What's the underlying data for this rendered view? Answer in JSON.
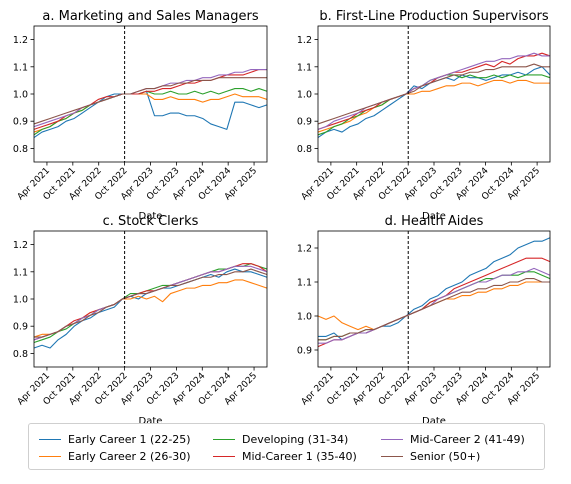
{
  "chart_data": [
    {
      "type": "line",
      "title": "a. Marketing and Sales Managers",
      "xlabel": "Date",
      "ylabel": "",
      "ylim": [
        0.75,
        1.25
      ],
      "yticks": [
        "0.8",
        "0.9",
        "1.0",
        "1.1",
        "1.2"
      ],
      "xticks": [
        "Apr 2021",
        "Oct 2021",
        "Apr 2022",
        "Oct 2022",
        "Apr 2023",
        "Oct 2023",
        "Apr 2024",
        "Oct 2024",
        "Apr 2025"
      ],
      "xticks_visible": [
        "Apr 2021",
        "Oct 2021",
        "Apr 2022",
        "Oct 2022",
        "Apr 2023",
        "Oct 2023",
        "Apr 2024",
        "Oct 2024",
        "Apr 2025"
      ],
      "vline": "Oct 2022",
      "x_start": "Jan 2021",
      "x_end": "Jul 2025",
      "series": [
        {
          "name": "Early Career 1 (22-25)",
          "values": [
            0.84,
            0.86,
            0.87,
            0.88,
            0.9,
            0.91,
            0.93,
            0.95,
            0.97,
            0.99,
            1.0,
            1.0,
            1.0,
            1.0,
            1.01,
            0.92,
            0.92,
            0.93,
            0.93,
            0.92,
            0.92,
            0.91,
            0.89,
            0.88,
            0.87,
            0.97,
            0.97,
            0.96,
            0.95,
            0.96
          ]
        },
        {
          "name": "Early Career 2 (26-30)",
          "values": [
            0.86,
            0.87,
            0.88,
            0.9,
            0.91,
            0.93,
            0.94,
            0.96,
            0.97,
            0.98,
            0.99,
            1.0,
            1.0,
            1.0,
            1.0,
            0.98,
            0.98,
            0.99,
            0.98,
            0.98,
            0.98,
            0.97,
            0.98,
            0.98,
            0.99,
            1.0,
            0.99,
            0.99,
            0.99,
            0.98
          ]
        },
        {
          "name": "Developing (31-34)",
          "values": [
            0.85,
            0.87,
            0.88,
            0.9,
            0.91,
            0.93,
            0.94,
            0.96,
            0.97,
            0.98,
            0.99,
            1.0,
            1.0,
            1.0,
            1.01,
            1.0,
            1.0,
            1.01,
            1.0,
            1.0,
            1.01,
            1.0,
            1.01,
            1.0,
            1.01,
            1.02,
            1.02,
            1.01,
            1.02,
            1.01
          ]
        },
        {
          "name": "Mid-Career 1 (35-40)",
          "values": [
            0.87,
            0.88,
            0.89,
            0.9,
            0.92,
            0.93,
            0.95,
            0.96,
            0.98,
            0.99,
            0.99,
            1.0,
            1.0,
            1.0,
            1.01,
            1.01,
            1.02,
            1.02,
            1.03,
            1.04,
            1.04,
            1.05,
            1.05,
            1.06,
            1.07,
            1.07,
            1.07,
            1.08,
            1.09,
            1.09
          ]
        },
        {
          "name": "Mid-Career 2 (41-49)",
          "values": [
            0.88,
            0.89,
            0.9,
            0.91,
            0.92,
            0.93,
            0.95,
            0.96,
            0.97,
            0.98,
            0.99,
            1.0,
            1.0,
            1.01,
            1.02,
            1.02,
            1.03,
            1.04,
            1.04,
            1.05,
            1.05,
            1.06,
            1.06,
            1.07,
            1.07,
            1.08,
            1.08,
            1.09,
            1.09,
            1.09
          ]
        },
        {
          "name": "Senior (50+)",
          "values": [
            0.89,
            0.9,
            0.91,
            0.92,
            0.93,
            0.94,
            0.95,
            0.96,
            0.97,
            0.98,
            0.99,
            1.0,
            1.0,
            1.01,
            1.02,
            1.02,
            1.03,
            1.03,
            1.04,
            1.04,
            1.05,
            1.05,
            1.05,
            1.06,
            1.06,
            1.06,
            1.06,
            1.06,
            1.06,
            1.06
          ]
        }
      ]
    },
    {
      "type": "line",
      "title": "b. First-Line Production Supervisors",
      "xlabel": "Date",
      "ylabel": "",
      "ylim": [
        0.75,
        1.25
      ],
      "yticks": [
        "0.8",
        "0.9",
        "1.0",
        "1.1",
        "1.2"
      ],
      "xticks": [
        "Apr 2021",
        "Oct 2021",
        "Apr 2022",
        "Oct 2022",
        "Apr 2023",
        "Oct 2023",
        "Apr 2024",
        "Oct 2024",
        "Apr 2025"
      ],
      "xticks_visible": [
        "Apr 2021",
        "Oct 2021",
        "Apr 2022",
        "Oct 2022",
        "Apr 2023",
        "Oct 2023",
        "Apr 2024",
        "Oct 2024",
        "Apr 2025"
      ],
      "vline": "Oct 2022",
      "x_start": "Jan 2021",
      "x_end": "Jul 2025",
      "series": [
        {
          "name": "Early Career 1 (22-25)",
          "values": [
            0.84,
            0.86,
            0.87,
            0.86,
            0.88,
            0.89,
            0.91,
            0.92,
            0.94,
            0.96,
            0.98,
            1.0,
            1.03,
            1.02,
            1.04,
            1.05,
            1.06,
            1.05,
            1.07,
            1.06,
            1.06,
            1.05,
            1.06,
            1.07,
            1.07,
            1.08,
            1.07,
            1.09,
            1.1,
            1.07
          ]
        },
        {
          "name": "Early Career 2 (26-30)",
          "values": [
            0.86,
            0.87,
            0.88,
            0.89,
            0.9,
            0.92,
            0.93,
            0.95,
            0.96,
            0.98,
            0.99,
            1.0,
            1.0,
            1.01,
            1.01,
            1.02,
            1.03,
            1.03,
            1.04,
            1.04,
            1.03,
            1.04,
            1.05,
            1.05,
            1.04,
            1.05,
            1.05,
            1.04,
            1.04,
            1.04
          ]
        },
        {
          "name": "Developing (31-34)",
          "values": [
            0.85,
            0.86,
            0.88,
            0.89,
            0.91,
            0.92,
            0.94,
            0.95,
            0.96,
            0.98,
            0.99,
            1.0,
            1.02,
            1.03,
            1.05,
            1.06,
            1.07,
            1.07,
            1.06,
            1.07,
            1.06,
            1.06,
            1.07,
            1.06,
            1.07,
            1.06,
            1.07,
            1.07,
            1.07,
            1.06
          ]
        },
        {
          "name": "Mid-Career 1 (35-40)",
          "values": [
            0.87,
            0.88,
            0.89,
            0.9,
            0.91,
            0.93,
            0.94,
            0.95,
            0.97,
            0.98,
            0.99,
            1.0,
            1.02,
            1.03,
            1.04,
            1.06,
            1.07,
            1.08,
            1.08,
            1.09,
            1.1,
            1.11,
            1.1,
            1.12,
            1.11,
            1.13,
            1.14,
            1.14,
            1.15,
            1.14
          ]
        },
        {
          "name": "Mid-Career 2 (41-49)",
          "values": [
            0.87,
            0.88,
            0.9,
            0.91,
            0.92,
            0.93,
            0.95,
            0.96,
            0.97,
            0.98,
            0.99,
            1.0,
            1.02,
            1.03,
            1.05,
            1.06,
            1.07,
            1.08,
            1.09,
            1.1,
            1.11,
            1.12,
            1.12,
            1.13,
            1.13,
            1.14,
            1.14,
            1.15,
            1.14,
            1.14
          ]
        },
        {
          "name": "Senior (50+)",
          "values": [
            0.89,
            0.9,
            0.91,
            0.92,
            0.93,
            0.94,
            0.95,
            0.96,
            0.97,
            0.98,
            0.99,
            1.0,
            1.01,
            1.03,
            1.04,
            1.05,
            1.06,
            1.07,
            1.07,
            1.08,
            1.08,
            1.09,
            1.09,
            1.1,
            1.1,
            1.1,
            1.1,
            1.11,
            1.1,
            1.1
          ]
        }
      ]
    },
    {
      "type": "line",
      "title": "c. Stock Clerks",
      "xlabel": "Date",
      "ylabel": "",
      "ylim": [
        0.75,
        1.25
      ],
      "yticks": [
        "0.8",
        "0.9",
        "1.0",
        "1.1",
        "1.2"
      ],
      "xticks": [
        "Apr 2021",
        "Oct 2021",
        "Apr 2022",
        "Oct 2022",
        "Apr 2023",
        "Oct 2023",
        "Apr 2024",
        "Oct 2024",
        "Apr 2025"
      ],
      "xticks_visible": [
        "Apr 2021",
        "Oct 2021",
        "Apr 2022",
        "Oct 2022",
        "Apr 2023",
        "Oct 2023",
        "Apr 2024",
        "Oct 2024",
        "Apr 2025"
      ],
      "vline": "Oct 2022",
      "x_start": "Jan 2021",
      "x_end": "Jul 2025",
      "series": [
        {
          "name": "Early Career 1 (22-25)",
          "values": [
            0.82,
            0.83,
            0.82,
            0.85,
            0.87,
            0.9,
            0.92,
            0.93,
            0.95,
            0.96,
            0.97,
            1.0,
            1.01,
            1.0,
            1.02,
            1.03,
            1.04,
            1.04,
            1.05,
            1.06,
            1.07,
            1.08,
            1.09,
            1.08,
            1.1,
            1.11,
            1.1,
            1.1,
            1.09,
            1.08
          ]
        },
        {
          "name": "Early Career 2 (26-30)",
          "values": [
            0.86,
            0.87,
            0.87,
            0.88,
            0.9,
            0.91,
            0.93,
            0.95,
            0.96,
            0.97,
            0.98,
            1.0,
            1.0,
            1.01,
            1.0,
            1.01,
            0.99,
            1.02,
            1.03,
            1.04,
            1.04,
            1.05,
            1.05,
            1.06,
            1.06,
            1.07,
            1.07,
            1.06,
            1.05,
            1.04
          ]
        },
        {
          "name": "Developing (31-34)",
          "values": [
            0.84,
            0.85,
            0.86,
            0.88,
            0.89,
            0.91,
            0.93,
            0.94,
            0.96,
            0.97,
            0.98,
            1.0,
            1.02,
            1.02,
            1.03,
            1.04,
            1.05,
            1.05,
            1.06,
            1.07,
            1.08,
            1.09,
            1.1,
            1.11,
            1.11,
            1.12,
            1.12,
            1.13,
            1.12,
            1.11
          ]
        },
        {
          "name": "Mid-Career 1 (35-40)",
          "values": [
            0.85,
            0.86,
            0.87,
            0.88,
            0.9,
            0.92,
            0.93,
            0.95,
            0.96,
            0.97,
            0.98,
            1.0,
            1.01,
            1.02,
            1.03,
            1.03,
            1.04,
            1.05,
            1.06,
            1.07,
            1.08,
            1.09,
            1.1,
            1.1,
            1.11,
            1.12,
            1.13,
            1.13,
            1.12,
            1.1
          ]
        },
        {
          "name": "Mid-Career 2 (41-49)",
          "values": [
            0.85,
            0.86,
            0.87,
            0.88,
            0.9,
            0.91,
            0.93,
            0.94,
            0.96,
            0.97,
            0.98,
            1.0,
            1.01,
            1.02,
            1.02,
            1.03,
            1.04,
            1.05,
            1.06,
            1.07,
            1.08,
            1.09,
            1.1,
            1.1,
            1.11,
            1.12,
            1.12,
            1.12,
            1.11,
            1.1
          ]
        },
        {
          "name": "Senior (50+)",
          "values": [
            0.86,
            0.86,
            0.87,
            0.88,
            0.9,
            0.91,
            0.92,
            0.94,
            0.95,
            0.97,
            0.98,
            1.0,
            1.01,
            1.02,
            1.02,
            1.03,
            1.04,
            1.05,
            1.05,
            1.06,
            1.07,
            1.08,
            1.08,
            1.09,
            1.09,
            1.1,
            1.1,
            1.11,
            1.1,
            1.09
          ]
        }
      ]
    },
    {
      "type": "line",
      "title": "d. Health Aides",
      "xlabel": "Date",
      "ylabel": "",
      "ylim": [
        0.85,
        1.25
      ],
      "yticks": [
        "0.9",
        "1.0",
        "1.1",
        "1.2"
      ],
      "xticks": [
        "Apr 2021",
        "Oct 2021",
        "Apr 2022",
        "Oct 2022",
        "Apr 2023",
        "Oct 2023",
        "Apr 2024",
        "Oct 2024",
        "Apr 2025"
      ],
      "xticks_visible": [
        "Apr 2021",
        "Oct 2021",
        "Apr 2022",
        "Oct 2022",
        "Apr 2023",
        "Oct 2023",
        "Apr 2024",
        "Oct 2024",
        "Apr 2025"
      ],
      "vline": "Oct 2022",
      "x_start": "Jan 2021",
      "x_end": "Jul 2025",
      "series": [
        {
          "name": "Early Career 1 (22-25)",
          "values": [
            0.94,
            0.94,
            0.95,
            0.93,
            0.94,
            0.95,
            0.95,
            0.96,
            0.97,
            0.97,
            0.98,
            1.0,
            1.02,
            1.03,
            1.05,
            1.06,
            1.08,
            1.09,
            1.1,
            1.12,
            1.13,
            1.14,
            1.16,
            1.17,
            1.18,
            1.2,
            1.21,
            1.22,
            1.22,
            1.23
          ]
        },
        {
          "name": "Early Career 2 (26-30)",
          "values": [
            1.0,
            0.99,
            1.0,
            0.98,
            0.97,
            0.96,
            0.97,
            0.96,
            0.97,
            0.98,
            0.99,
            1.0,
            1.01,
            1.02,
            1.03,
            1.04,
            1.05,
            1.05,
            1.06,
            1.06,
            1.07,
            1.07,
            1.08,
            1.08,
            1.09,
            1.09,
            1.1,
            1.1,
            1.1,
            1.1
          ]
        },
        {
          "name": "Developing (31-34)",
          "values": [
            0.93,
            0.93,
            0.94,
            0.94,
            0.95,
            0.95,
            0.96,
            0.96,
            0.97,
            0.98,
            0.99,
            1.0,
            1.01,
            1.02,
            1.04,
            1.05,
            1.06,
            1.07,
            1.08,
            1.09,
            1.1,
            1.11,
            1.11,
            1.12,
            1.12,
            1.12,
            1.13,
            1.13,
            1.12,
            1.11
          ]
        },
        {
          "name": "Mid-Career 1 (35-40)",
          "values": [
            0.91,
            0.92,
            0.93,
            0.93,
            0.94,
            0.95,
            0.95,
            0.96,
            0.97,
            0.98,
            0.99,
            1.0,
            1.01,
            1.02,
            1.04,
            1.05,
            1.06,
            1.08,
            1.09,
            1.1,
            1.11,
            1.12,
            1.13,
            1.14,
            1.15,
            1.16,
            1.17,
            1.17,
            1.17,
            1.16
          ]
        },
        {
          "name": "Mid-Career 2 (41-49)",
          "values": [
            0.92,
            0.92,
            0.93,
            0.93,
            0.94,
            0.95,
            0.95,
            0.96,
            0.97,
            0.98,
            0.99,
            1.0,
            1.01,
            1.02,
            1.03,
            1.05,
            1.06,
            1.07,
            1.08,
            1.09,
            1.1,
            1.1,
            1.11,
            1.12,
            1.12,
            1.13,
            1.13,
            1.14,
            1.13,
            1.12
          ]
        },
        {
          "name": "Senior (50+)",
          "values": [
            0.93,
            0.93,
            0.94,
            0.94,
            0.95,
            0.95,
            0.96,
            0.96,
            0.97,
            0.98,
            0.99,
            1.0,
            1.01,
            1.02,
            1.03,
            1.04,
            1.05,
            1.06,
            1.07,
            1.07,
            1.08,
            1.08,
            1.09,
            1.09,
            1.1,
            1.1,
            1.11,
            1.11,
            1.1,
            1.1
          ]
        }
      ]
    }
  ],
  "series_colors": [
    "#1f77b4",
    "#ff7f0e",
    "#2ca02c",
    "#d62728",
    "#9467bd",
    "#8c564b"
  ],
  "legend": {
    "items": [
      {
        "label": "Early Career 1 (22-25)",
        "color": "#1f77b4"
      },
      {
        "label": "Early Career 2 (26-30)",
        "color": "#ff7f0e"
      },
      {
        "label": "Developing (31-34)",
        "color": "#2ca02c"
      },
      {
        "label": "Mid-Career 1 (35-40)",
        "color": "#d62728"
      },
      {
        "label": "Mid-Career 2 (41-49)",
        "color": "#9467bd"
      },
      {
        "label": "Senior (50+)",
        "color": "#8c564b"
      }
    ]
  }
}
